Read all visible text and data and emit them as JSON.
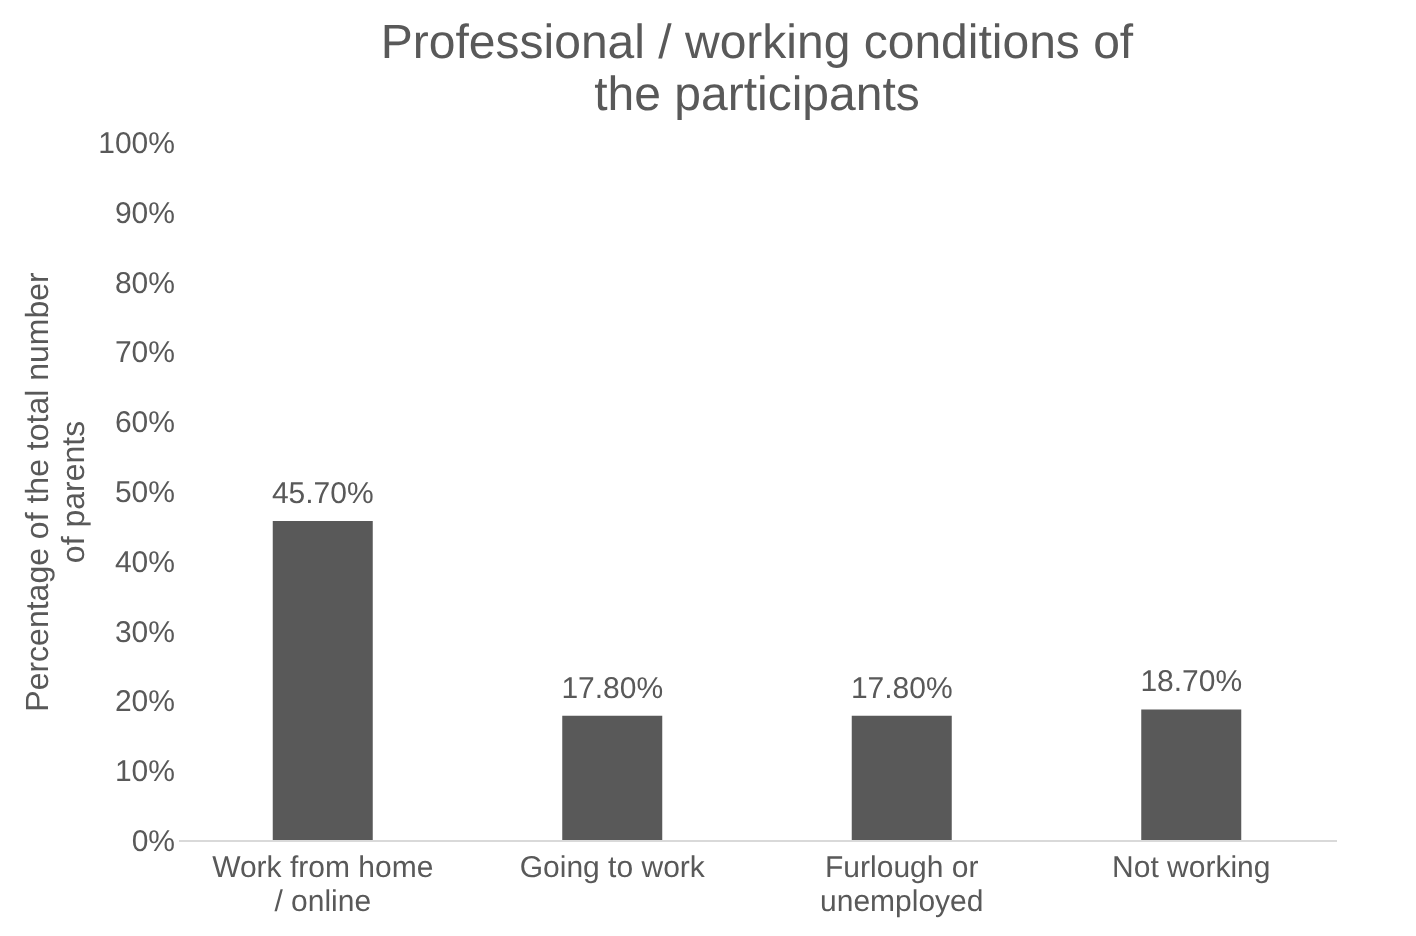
{
  "chart_data": {
    "type": "bar",
    "title": "Professional / working conditions of the participants",
    "ylabel": "Percentage of the total number of parents",
    "categories": [
      "Work from home / online",
      "Going to work",
      "Furlough or unemployed",
      "Not working"
    ],
    "values": [
      45.7,
      17.8,
      17.8,
      18.7
    ],
    "value_labels": [
      "45.70%",
      "17.80%",
      "17.80%",
      "18.70%"
    ],
    "color": "#595959",
    "ylim": [
      0,
      100
    ],
    "yticks": [
      {
        "value": 0,
        "label": "0%"
      },
      {
        "value": 10,
        "label": "10%"
      },
      {
        "value": 20,
        "label": "20%"
      },
      {
        "value": 30,
        "label": "30%"
      },
      {
        "value": 40,
        "label": "40%"
      },
      {
        "value": 50,
        "label": "50%"
      },
      {
        "value": 60,
        "label": "60%"
      },
      {
        "value": 70,
        "label": "70%"
      },
      {
        "value": 80,
        "label": "80%"
      },
      {
        "value": 90,
        "label": "90%"
      },
      {
        "value": 100,
        "label": "100%"
      }
    ],
    "grid": false
  }
}
